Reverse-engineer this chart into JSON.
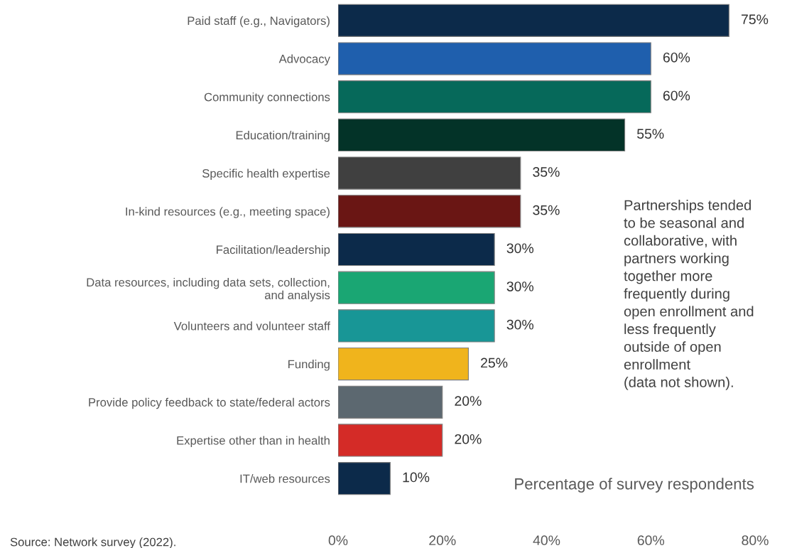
{
  "chart_data": {
    "type": "bar",
    "orientation": "horizontal",
    "categories": [
      "Paid staff (e.g., Navigators)",
      "Advocacy",
      "Community connections",
      "Education/training",
      "Specific health expertise",
      "In-kind resources (e.g., meeting space)",
      "Facilitation/leadership",
      "Data resources, including data sets, collection,\nand analysis",
      "Volunteers and volunteer staff",
      "Funding",
      "Provide policy feedback to state/federal actors",
      "Expertise other than in health",
      "IT/web resources"
    ],
    "values": [
      75,
      60,
      60,
      55,
      35,
      35,
      30,
      30,
      30,
      25,
      20,
      20,
      10
    ],
    "colors": [
      "#0c2a4a",
      "#1f5fad",
      "#06695a",
      "#033328",
      "#404040",
      "#6a1614",
      "#0c2a4a",
      "#1aa673",
      "#189696",
      "#f0b41c",
      "#5c6870",
      "#d42b27",
      "#0c2a4a"
    ],
    "value_labels": [
      "75%",
      "60%",
      "60%",
      "55%",
      "35%",
      "35%",
      "30%",
      "30%",
      "30%",
      "25%",
      "20%",
      "20%",
      "10%"
    ],
    "xlabel": "Percentage of survey respondents",
    "xlim": [
      0,
      80
    ],
    "xticks": [
      {
        "value": 0,
        "label": "0%"
      },
      {
        "value": 20,
        "label": "20%"
      },
      {
        "value": 40,
        "label": "40%"
      },
      {
        "value": 60,
        "label": "60%"
      },
      {
        "value": 80,
        "label": "80%"
      }
    ],
    "annotations": [
      "Partnerships tended\nto be seasonal and\ncollaborative, with\npartners working\ntogether more\nfrequently during\nopen enrollment and\nless frequently\noutside of open\nenrollment\n(data not shown).",
      "Source: Network survey (2022)."
    ],
    "grid": false,
    "legend": false
  }
}
